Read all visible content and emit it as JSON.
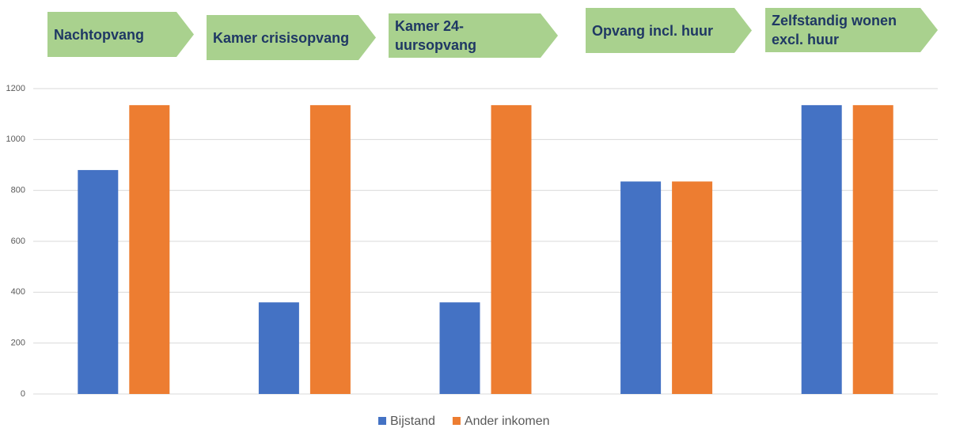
{
  "chart_data": {
    "type": "bar",
    "categories": [
      "Nachtopvang",
      "Kamer crisisopvang",
      "Kamer 24-uursopvang",
      "Opvang incl. huur",
      "Zelfstandig wonen excl. huur"
    ],
    "series": [
      {
        "name": "Bijstand",
        "color": "#4472c4",
        "values": [
          880,
          360,
          360,
          835,
          1135
        ]
      },
      {
        "name": "Ander inkomen",
        "color": "#ed7d31",
        "values": [
          1135,
          1135,
          1135,
          835,
          1135
        ]
      }
    ],
    "ylim": [
      0,
      1200
    ],
    "yticks": [
      0,
      200,
      400,
      600,
      800,
      1000,
      1200
    ],
    "grid": true,
    "legend": "bottom"
  }
}
